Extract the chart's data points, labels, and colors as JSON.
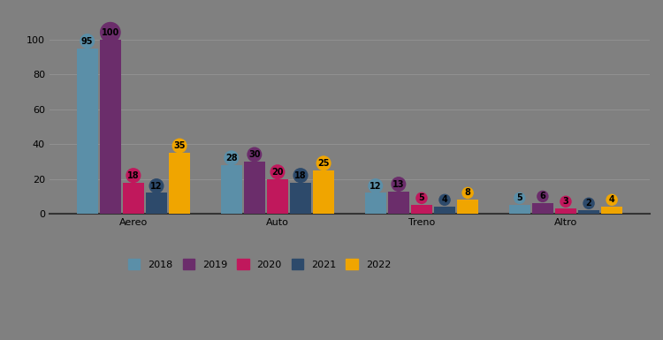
{
  "categories": [
    "Aereo",
    "Auto",
    "Treno",
    "Altro"
  ],
  "years": [
    2018,
    2019,
    2020,
    2021,
    2022
  ],
  "values": {
    "Aereo": [
      95,
      100,
      18,
      12,
      35
    ],
    "Auto": [
      28,
      30,
      20,
      18,
      25
    ],
    "Treno": [
      12,
      13,
      5,
      4,
      8
    ],
    "Altro": [
      5,
      6,
      3,
      2,
      4
    ]
  },
  "colors": [
    "#5b8fa8",
    "#6b2d6b",
    "#c0185c",
    "#2d4a6b",
    "#f0a500"
  ],
  "bar_width": 0.16,
  "ylim": [
    0,
    115
  ],
  "yticks": [
    0,
    20,
    40,
    60,
    80,
    100
  ],
  "background_color": "#808080",
  "grid_color": "#909090",
  "spine_color": "#333333",
  "label_fontsize": 7,
  "tick_fontsize": 8,
  "legend_fontsize": 8
}
